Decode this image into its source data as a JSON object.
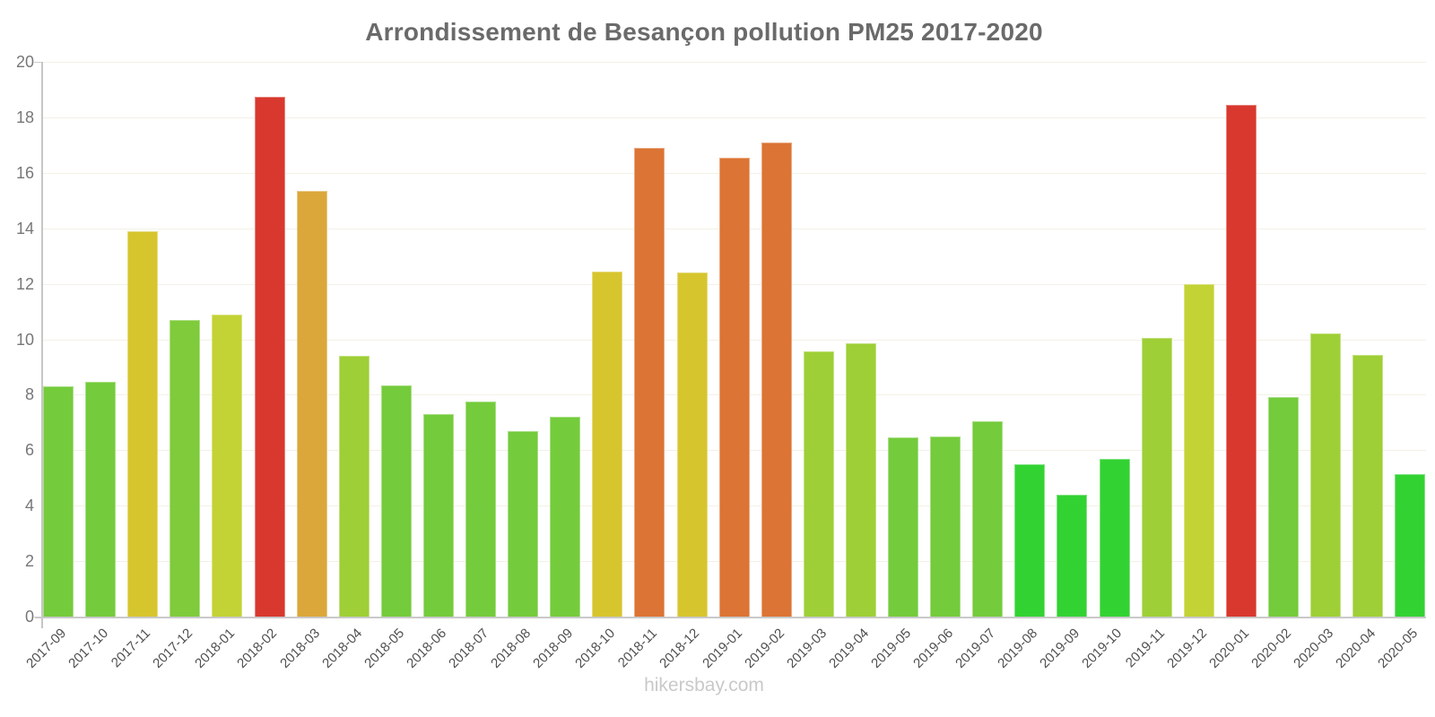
{
  "title": "Arrondissement de Besançon pollution PM25 2017-2020",
  "watermark": "hikersbay.com",
  "axis_colors": {
    "grid": "#f4f0e6",
    "axis_line": "#c9c9c9",
    "y_label_color": "#777777",
    "x_label_color": "#4f4f4f",
    "title_color": "#6a6a6a",
    "watermark_color": "#c9c9c9"
  },
  "palette": {
    "bright_green": "#33D233",
    "green": "#74CB3C",
    "green_yellow": "#7FCB3C",
    "yellowgreen": "#9ECF36",
    "lime": "#C3D235",
    "yellow": "#D7C52E",
    "gold": "#DBA73B",
    "orange": "#DB7434",
    "red": "#D8382E"
  },
  "chart_data": {
    "type": "bar",
    "title": "Arrondissement de Besançon pollution PM25 2017-2020",
    "xlabel": "",
    "ylabel": "",
    "ylim": [
      0,
      20
    ],
    "y_ticks": [
      0,
      2,
      4,
      6,
      8,
      10,
      12,
      14,
      16,
      18,
      20
    ],
    "grid": true,
    "legend": false,
    "categories": [
      "2017-09",
      "2017-10",
      "2017-11",
      "2017-12",
      "2018-01",
      "2018-02",
      "2018-03",
      "2018-04",
      "2018-05",
      "2018-06",
      "2018-07",
      "2018-08",
      "2018-09",
      "2018-10",
      "2018-11",
      "2018-12",
      "2019-01",
      "2019-02",
      "2019-03",
      "2019-04",
      "2019-05",
      "2019-06",
      "2019-07",
      "2019-08",
      "2019-09",
      "2019-10",
      "2019-11",
      "2019-12",
      "2020-01",
      "2020-02",
      "2020-03",
      "2020-04",
      "2020-05"
    ],
    "values": [
      8.3,
      8.45,
      13.9,
      10.7,
      10.9,
      18.75,
      15.35,
      9.4,
      8.35,
      7.3,
      7.75,
      6.7,
      7.2,
      12.45,
      16.9,
      12.4,
      16.55,
      17.1,
      9.55,
      9.85,
      6.45,
      6.5,
      7.05,
      5.5,
      4.4,
      5.7,
      10.05,
      12.0,
      18.45,
      7.9,
      10.2,
      9.45,
      5.15
    ],
    "bar_colors": [
      "#74CB3C",
      "#74CB3C",
      "#D7C52E",
      "#7FCB3C",
      "#C3D235",
      "#D8382E",
      "#DBA73B",
      "#9ECF36",
      "#74CB3C",
      "#74CB3C",
      "#74CB3C",
      "#74CB3C",
      "#74CB3C",
      "#D7C52E",
      "#DB7434",
      "#D7C52E",
      "#DB7434",
      "#DB7434",
      "#9ECF36",
      "#9ECF36",
      "#74CB3C",
      "#74CB3C",
      "#74CB3C",
      "#33D233",
      "#33D233",
      "#33D233",
      "#9ECF36",
      "#C3D235",
      "#D8382E",
      "#74CB3C",
      "#9ECF36",
      "#9ECF36",
      "#33D233"
    ]
  }
}
